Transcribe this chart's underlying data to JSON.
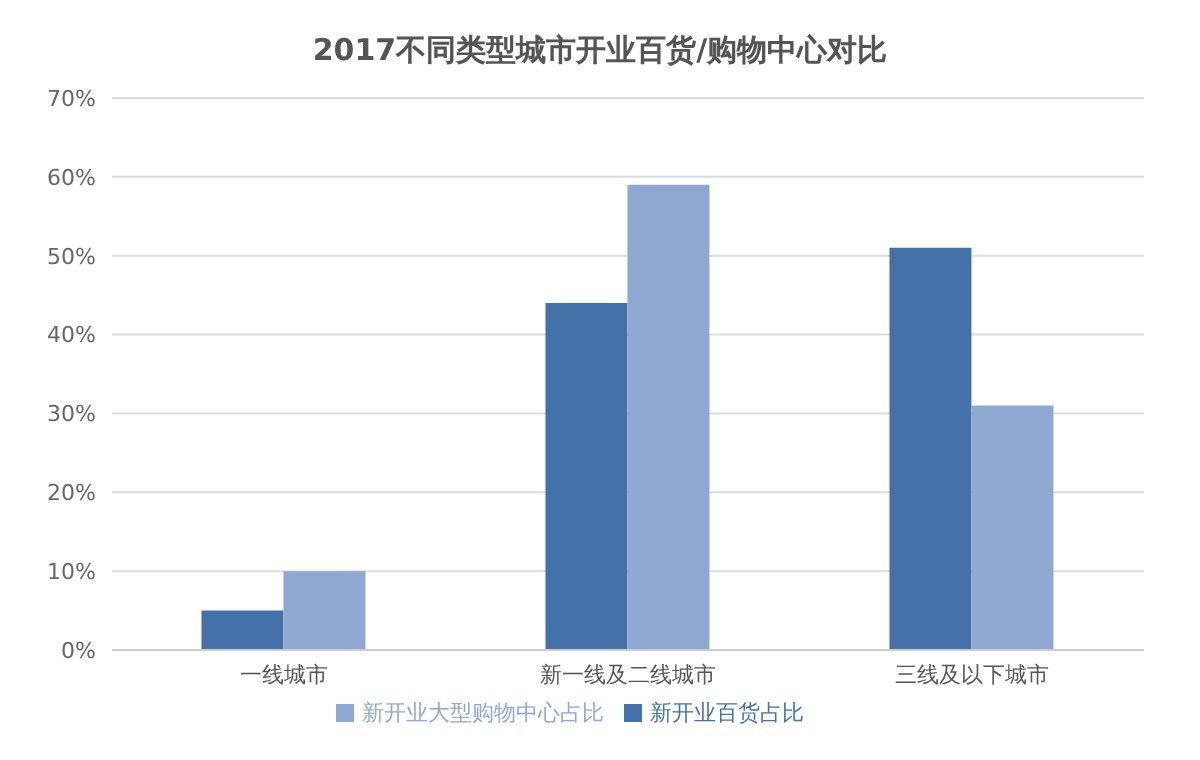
{
  "chart_data": {
    "type": "bar",
    "title": "2017不同类型城市开业百货/购物中心对比",
    "categories": [
      "一线城市",
      "新一线及二线城市",
      "三线及以下城市"
    ],
    "series": [
      {
        "name": "新开业百货占比",
        "color": "#4472a8",
        "values": [
          5,
          44,
          51
        ]
      },
      {
        "name": "新开业大型购物中心占比",
        "color": "#8fa8d2",
        "values": [
          10,
          59,
          31
        ]
      }
    ],
    "ylim": [
      0,
      70
    ],
    "yticks": [
      {
        "value": 0,
        "label": "0%"
      },
      {
        "value": 10,
        "label": "10%"
      },
      {
        "value": 20,
        "label": "20%"
      },
      {
        "value": 30,
        "label": "30%"
      },
      {
        "value": 40,
        "label": "40%"
      },
      {
        "value": 50,
        "label": "50%"
      },
      {
        "value": 60,
        "label": "60%"
      },
      {
        "value": 70,
        "label": "70%"
      }
    ],
    "grid": "y",
    "legend": "bottom"
  }
}
